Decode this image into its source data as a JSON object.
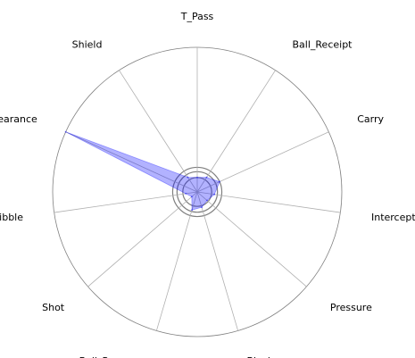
{
  "chart_data": {
    "type": "radar",
    "title": "",
    "categories": [
      "T_Pass",
      "Ball_Receipt",
      "Carry",
      "Interception",
      "Pressure",
      "Block",
      "Ball_Recovery",
      "Shot",
      "Dribble",
      "Clearance",
      "Shield"
    ],
    "series": [
      {
        "values": [
          0.1,
          0.12,
          0.17,
          0.12,
          0.09,
          0.11,
          0.13,
          0.05,
          0.08,
          1.0,
          0.12
        ]
      }
    ],
    "rlim": [
      0,
      1
    ],
    "rings": [
      0.1,
      0.14,
      0.17,
      1.0
    ],
    "grid": true,
    "legend": "none",
    "colors": {
      "fill": "#0000ff",
      "fill_opacity": 0.3,
      "grid": "#b0b0b0",
      "ring": "#808080"
    }
  }
}
